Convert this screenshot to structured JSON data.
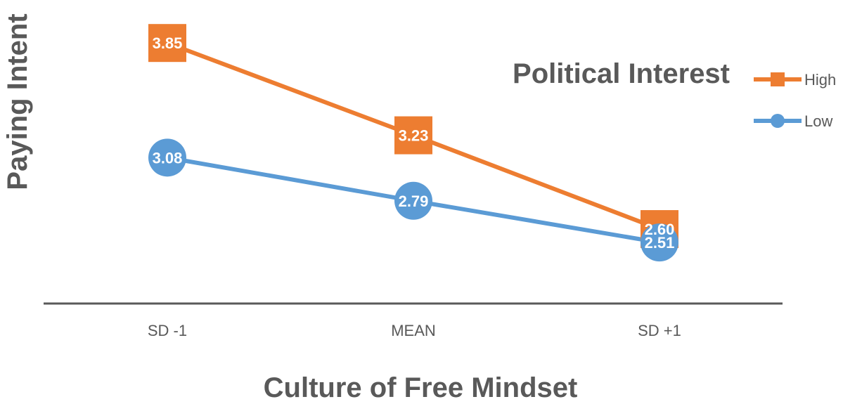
{
  "chart_data": {
    "type": "line",
    "title": "",
    "xlabel": "Culture of Free Mindset",
    "ylabel": "Paying Intent",
    "categories": [
      "SD -1",
      "MEAN",
      "SD +1"
    ],
    "series": [
      {
        "name": "High",
        "values": [
          3.85,
          3.23,
          2.6
        ],
        "labels": [
          "3.85",
          "3.23",
          "2.60"
        ],
        "color": "#ED7D31",
        "marker": "square"
      },
      {
        "name": "Low",
        "values": [
          3.08,
          2.79,
          2.51
        ],
        "labels": [
          "3.08",
          "2.79",
          "2.51"
        ],
        "color": "#5B9BD5",
        "marker": "circle"
      }
    ],
    "legend": {
      "title": "Political Interest",
      "placement": "top-right"
    },
    "ylim": [
      2.1,
      3.95
    ],
    "grid": false,
    "axis_color": "#595959"
  }
}
